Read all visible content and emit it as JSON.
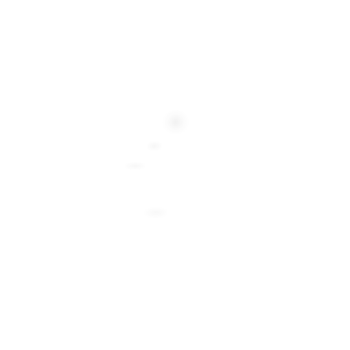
{
  "page": {
    "background_color": "#ffffff"
  },
  "artifacts": [
    {
      "name": "faint-blob-large",
      "color": "#e6e6e6"
    },
    {
      "name": "faint-blob-small",
      "color": "#eeeeee"
    },
    {
      "name": "faint-blob-left",
      "color": "#f0f0f0"
    },
    {
      "name": "faint-blob-lower",
      "color": "#f0f0f0"
    }
  ]
}
